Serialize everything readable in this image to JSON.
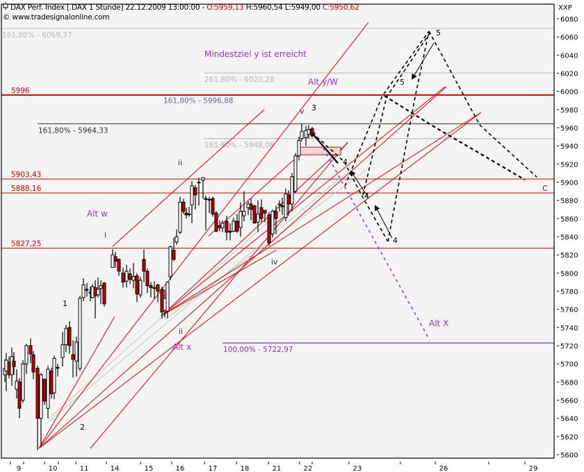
{
  "header": {
    "symbol_icon": "candle-symbol-icon",
    "title": "DAX Perf. Index [.DAX  1 Stunde] 22.12.2009 13:00:00 - ",
    "open": "O:5959,13",
    "high": " H:5960,54",
    "low": " L:5949,00",
    "close": " C:5950,62",
    "copyright": "© www.tradesignalonline.com"
  },
  "colors": {
    "background": "#f4f4f4",
    "frame": "#000000",
    "support_red": "#e00000",
    "fib_gray": "#c0c0c0",
    "fib_dark": "#404040",
    "purple": "#8a2be2",
    "label_blue": "#6a6a9a",
    "bull_candle": "#ffffff",
    "bear_candle": "#cc0000"
  },
  "chart_data": {
    "type": "candlestick",
    "title": "DAX Perf. Index [.DAX 1 Stunde] 22.12.2009 13:00:00",
    "ohlc_last": {
      "open": 5959.13,
      "high": 5960.54,
      "low": 5949.0,
      "close": 5950.62
    },
    "y_axis_label": "XXP",
    "ylim": [
      5600,
      6080
    ],
    "y_ticks": [
      6080,
      6060,
      6040,
      6020,
      6000,
      5980,
      5960,
      5940,
      5920,
      5900,
      5880,
      5860,
      5840,
      5820,
      5800,
      5780,
      5760,
      5740,
      5720,
      5700,
      5680,
      5660,
      5640,
      5620,
      5600
    ],
    "x_ticks": [
      {
        "label": "9",
        "x": 27
      },
      {
        "label": "10",
        "x": 76
      },
      {
        "label": "11",
        "x": 121
      },
      {
        "label": "14",
        "x": 165
      },
      {
        "label": "15",
        "x": 214
      },
      {
        "label": "16",
        "x": 259
      },
      {
        "label": "17",
        "x": 306
      },
      {
        "label": "18",
        "x": 352
      },
      {
        "label": "21",
        "x": 398
      },
      {
        "label": "22",
        "x": 443
      },
      {
        "label": "23",
        "x": 514
      },
      {
        "label": "26",
        "x": 638
      },
      {
        "label": "29",
        "x": 767
      }
    ],
    "x_minor_ticks": [
      34,
      84,
      449,
      576,
      703
    ],
    "horizontal_levels": [
      {
        "label": "5996",
        "value": 5996,
        "color": "#e00000",
        "width": 2,
        "label_x": 16
      },
      {
        "label": "5903,43",
        "value": 5903.43,
        "color": "#e00000",
        "width": 1,
        "label_x": 16
      },
      {
        "label": "5888,16",
        "value": 5888.16,
        "color": "#e00000",
        "width": 1,
        "label_x": 16
      },
      {
        "label": "5827,25",
        "value": 5827.25,
        "color": "#e00000",
        "width": 1,
        "label_x": 16
      }
    ],
    "fib_levels": [
      {
        "label": "161,80% - 6069,37",
        "value": 6069.37,
        "x1": 2,
        "color": "#c8c8c8",
        "text_color": "#b8b8b8"
      },
      {
        "label": "261,80% - 6020,28",
        "value": 6020.28,
        "x1": 293,
        "color": "#c0c0c0",
        "text_color": "#b0b0b0"
      },
      {
        "label": "161,80% - 5996,88",
        "value": 5996.88,
        "x1": 234,
        "color": "none",
        "text_color": "#6a6a9a"
      },
      {
        "label": "161,80% - 5964,33",
        "value": 5964.33,
        "x1": 54,
        "color": "#404040",
        "text_color": "#303030"
      },
      {
        "label": "161,80% - 5948,06",
        "value": 5948.06,
        "x1": 293,
        "color": "#c0c0c0",
        "text_color": "#b0b0b0"
      },
      {
        "label": "100,00% - 5722,97",
        "value": 5722.97,
        "x1": 320,
        "color": "#8a2be2",
        "text_color": "#8a2be2"
      }
    ],
    "annotations": [
      {
        "text": "Mindestziel y  ist erreicht",
        "x": 294,
        "y": 82,
        "color": "#9932cc",
        "size": 12
      },
      {
        "text": "Alt y/W",
        "x": 443,
        "y": 122,
        "color": "#9932cc",
        "size": 12
      },
      {
        "text": "Alt w",
        "x": 125,
        "y": 312,
        "color": "#9932cc",
        "size": 12
      },
      {
        "text": "Alt x",
        "x": 248,
        "y": 504,
        "color": "#9932cc",
        "size": 12
      },
      {
        "text": "Alt X",
        "x": 617,
        "y": 470,
        "color": "#9932cc",
        "size": 12
      },
      {
        "text": "i",
        "x": 150,
        "y": 342,
        "color": "#303060",
        "size": 11
      },
      {
        "text": "ii",
        "x": 256,
        "y": 238,
        "color": "#303060",
        "size": 11
      },
      {
        "text": "ii",
        "x": 257,
        "y": 481,
        "color": "#303060",
        "size": 11
      },
      {
        "text": "iv",
        "x": 390,
        "y": 381,
        "color": "#303060",
        "size": 11
      },
      {
        "text": "v",
        "x": 431,
        "y": 164,
        "color": "#303060",
        "size": 11
      },
      {
        "text": "1",
        "x": 90,
        "y": 441,
        "color": "#000",
        "size": 11
      },
      {
        "text": "2",
        "x": 115,
        "y": 619,
        "color": "#000",
        "size": 11
      },
      {
        "text": "3",
        "x": 448,
        "y": 159,
        "color": "#000",
        "size": 11
      },
      {
        "text": "4",
        "x": 493,
        "y": 237,
        "color": "#000",
        "size": 11
      },
      {
        "text": "4",
        "x": 524,
        "y": 286,
        "color": "#000",
        "size": 11
      },
      {
        "text": "4",
        "x": 565,
        "y": 350,
        "color": "#000",
        "size": 11
      },
      {
        "text": "5",
        "x": 575,
        "y": 122,
        "color": "#000",
        "size": 11
      },
      {
        "text": "5",
        "x": 627,
        "y": 51,
        "color": "#000",
        "size": 11
      },
      {
        "text": "C",
        "x": 780,
        "y": 275,
        "color": "#303060",
        "size": 11
      }
    ],
    "candles": [
      [
        7,
        5688,
        5695,
        5705,
        5680
      ],
      [
        9,
        5692,
        5704,
        5712,
        5670
      ],
      [
        13,
        5702,
        5688,
        5708,
        5684
      ],
      [
        17,
        5688,
        5708,
        5718,
        5676
      ],
      [
        20,
        5703,
        5697,
        5713,
        5688
      ],
      [
        24,
        5672,
        5681,
        5694,
        5662
      ],
      [
        28,
        5680,
        5651,
        5684,
        5640
      ],
      [
        33,
        5660,
        5700,
        5704,
        5657
      ],
      [
        38,
        5700,
        5720,
        5722,
        5689
      ],
      [
        44,
        5720,
        5711,
        5728,
        5701
      ],
      [
        48,
        5710,
        5691,
        5714,
        5683
      ],
      [
        54,
        5695,
        5640,
        5698,
        5605
      ],
      [
        59,
        5640,
        5688,
        5690,
        5610
      ],
      [
        64,
        5683,
        5659,
        5684,
        5655
      ],
      [
        69,
        5651,
        5694,
        5698,
        5640
      ],
      [
        74,
        5692,
        5667,
        5696,
        5662
      ],
      [
        78,
        5668,
        5706,
        5709,
        5661
      ],
      [
        83,
        5696,
        5696,
        5700,
        5686
      ],
      [
        90,
        5707,
        5721,
        5735,
        5697
      ],
      [
        95,
        5721,
        5739,
        5743,
        5713
      ],
      [
        100,
        5740,
        5720,
        5747,
        5711
      ],
      [
        105,
        5710,
        5705,
        5726,
        5685
      ],
      [
        110,
        5703,
        5724,
        5730,
        5686
      ],
      [
        115,
        5695,
        5772,
        5775,
        5692
      ],
      [
        120,
        5773,
        5787,
        5794,
        5769
      ],
      [
        125,
        5782,
        5781,
        5789,
        5774
      ],
      [
        130,
        5778,
        5779,
        5785,
        5769
      ],
      [
        133,
        5773,
        5785,
        5788,
        5772
      ],
      [
        137,
        5784,
        5775,
        5792,
        5750
      ],
      [
        141,
        5776,
        5782,
        5795,
        5773
      ],
      [
        145,
        5783,
        5786,
        5792,
        5766
      ],
      [
        150,
        5789,
        5766,
        5790,
        5763
      ],
      [
        162,
        5806,
        5820,
        5826,
        5806
      ],
      [
        166,
        5818,
        5813,
        5823,
        5806
      ],
      [
        171,
        5815,
        5802,
        5816,
        5797
      ],
      [
        177,
        5800,
        5790,
        5806,
        5784
      ],
      [
        182,
        5791,
        5802,
        5809,
        5784
      ],
      [
        187,
        5799,
        5793,
        5805,
        5788
      ],
      [
        192,
        5792,
        5796,
        5811,
        5783
      ],
      [
        197,
        5797,
        5777,
        5800,
        5768
      ],
      [
        202,
        5776,
        5792,
        5796,
        5773
      ],
      [
        207,
        5815,
        5802,
        5826,
        5790
      ],
      [
        212,
        5802,
        5786,
        5805,
        5778
      ],
      [
        217,
        5786,
        5784,
        5790,
        5773
      ],
      [
        222,
        5783,
        5784,
        5791,
        5771
      ],
      [
        227,
        5787,
        5780,
        5788,
        5768
      ],
      [
        233,
        5782,
        5757,
        5785,
        5750
      ],
      [
        237,
        5759,
        5772,
        5782,
        5751
      ],
      [
        241,
        5758,
        5790,
        5790,
        5750
      ],
      [
        245,
        5796,
        5829,
        5830,
        5792
      ],
      [
        250,
        5825,
        5815,
        5839,
        5813
      ],
      [
        254,
        5834,
        5840,
        5848,
        5831
      ],
      [
        259,
        5845,
        5878,
        5884,
        5843
      ],
      [
        264,
        5878,
        5868,
        5882,
        5865
      ],
      [
        268,
        5866,
        5864,
        5872,
        5860
      ],
      [
        272,
        5865,
        5865,
        5873,
        5862
      ],
      [
        276,
        5875,
        5896,
        5901,
        5855
      ],
      [
        281,
        5894,
        5886,
        5897,
        5870
      ],
      [
        286,
        5900,
        5900,
        5905,
        5874
      ],
      [
        292,
        5902,
        5905,
        5905,
        5882
      ],
      [
        296,
        5882,
        5881,
        5885,
        5847
      ],
      [
        301,
        5881,
        5881,
        5884,
        5866
      ],
      [
        306,
        5882,
        5865,
        5884,
        5862
      ],
      [
        311,
        5866,
        5846,
        5868,
        5845
      ],
      [
        316,
        5852,
        5850,
        5858,
        5846
      ],
      [
        320,
        5850,
        5855,
        5858,
        5845
      ],
      [
        326,
        5857,
        5845,
        5863,
        5836
      ],
      [
        331,
        5846,
        5845,
        5855,
        5836
      ],
      [
        336,
        5846,
        5857,
        5861,
        5845
      ],
      [
        341,
        5857,
        5846,
        5865,
        5844
      ],
      [
        346,
        5850,
        5868,
        5878,
        5840
      ],
      [
        351,
        5863,
        5868,
        5890,
        5857
      ],
      [
        357,
        5872,
        5876,
        5879,
        5864
      ],
      [
        361,
        5876,
        5870,
        5882,
        5858
      ],
      [
        366,
        5874,
        5855,
        5875,
        5855
      ],
      [
        371,
        5856,
        5865,
        5880,
        5845
      ],
      [
        376,
        5872,
        5860,
        5881,
        5856
      ],
      [
        381,
        5869,
        5866,
        5869,
        5856
      ],
      [
        387,
        5864,
        5833,
        5867,
        5830
      ],
      [
        392,
        5843,
        5868,
        5870,
        5839
      ],
      [
        397,
        5868,
        5860,
        5874,
        5843
      ],
      [
        402,
        5875,
        5876,
        5880,
        5868
      ],
      [
        406,
        5874,
        5873,
        5883,
        5864
      ],
      [
        411,
        5861,
        5887,
        5893,
        5857
      ],
      [
        415,
        5886,
        5876,
        5891,
        5863
      ],
      [
        420,
        5876,
        5906,
        5910,
        5868
      ],
      [
        425,
        5890,
        5929,
        5932,
        5888
      ],
      [
        430,
        5929,
        5946,
        5950,
        5924
      ],
      [
        434,
        5948,
        5956,
        5964,
        5945
      ],
      [
        440,
        5949,
        5957,
        5962,
        5940
      ],
      [
        444,
        5953,
        5958,
        5963,
        5948
      ],
      [
        449,
        5959,
        5951,
        5961,
        5949
      ]
    ],
    "trendlines_red": [
      [
        56,
        646,
        530,
        32
      ],
      [
        56,
        646,
        642,
        125
      ],
      [
        56,
        646,
        692,
        162
      ],
      [
        162,
        355,
        380,
        158
      ],
      [
        56,
        646,
        165,
        456
      ],
      [
        232,
        455,
        398,
        360
      ],
      [
        232,
        455,
        640,
        125
      ],
      [
        232,
        455,
        692,
        162
      ],
      [
        232,
        455,
        500,
        206
      ],
      [
        300,
        340,
        432,
        222
      ],
      [
        130,
        646,
        500,
        205
      ]
    ],
    "trendlines_gray": [
      [
        69,
        608,
        500,
        248
      ],
      [
        69,
        604,
        410,
        298
      ],
      [
        238,
        460,
        525,
        246
      ]
    ],
    "rectangle": {
      "x": 432,
      "y": 212,
      "w": 58,
      "h": 11,
      "fill": "#f3d4d4",
      "stroke": "#802020"
    },
    "paths_dashed_black": [
      [
        [
          449,
          191
        ],
        [
          495,
          233
        ],
        [
          520,
          281
        ],
        [
          558,
          348
        ]
      ],
      [
        [
          496,
          268
        ],
        [
          550,
          138
        ],
        [
          617,
          45
        ]
      ],
      [
        [
          558,
          348
        ],
        [
          597,
          140
        ],
        [
          617,
          45
        ]
      ],
      [
        [
          617,
          45
        ],
        [
          690,
          180
        ],
        [
          772,
          255
        ]
      ],
      [
        [
          522,
          281
        ],
        [
          556,
          140
        ],
        [
          620,
          45
        ]
      ],
      [
        [
          553,
          138
        ],
        [
          620,
          180
        ],
        [
          755,
          259
        ]
      ]
    ],
    "purple_dashed": [
      [
        452,
        190
      ],
      [
        618,
        490
      ]
    ],
    "arrows": [
      [
        [
          449,
          192
        ],
        [
          486,
          235
        ]
      ],
      [
        [
          528,
          282
        ],
        [
          505,
          247
        ]
      ],
      [
        [
          564,
          343
        ],
        [
          540,
          297
        ]
      ],
      [
        [
          624,
          62
        ],
        [
          593,
          113
        ]
      ]
    ]
  }
}
